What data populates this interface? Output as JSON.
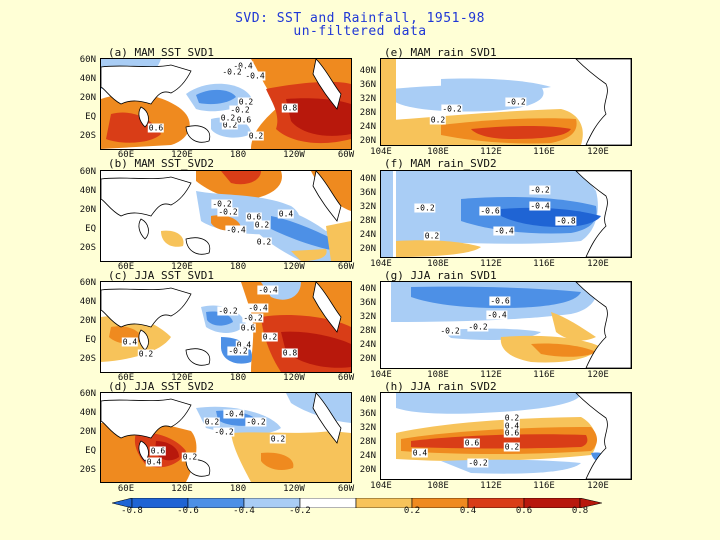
{
  "title": "SVD: SST and Rainfall, 1951-98",
  "subtitle": "un-filtered data",
  "colors": {
    "neg_dark": "#1f64d4",
    "neg_mid": "#4d90e6",
    "neg_light": "#a9cdf5",
    "white": "#ffffff",
    "pos_light": "#f7c35a",
    "pos_mid": "#ef8a1f",
    "pos_dark": "#d93d17",
    "pos_deep": "#b8180c",
    "land": "#ffffff",
    "title_blue": "#1f37d6",
    "background": "#ffffd6"
  },
  "sst_axes": {
    "y_ticks": [
      "60N",
      "40N",
      "20N",
      "EQ",
      "20S"
    ],
    "x_ticks": [
      "60E",
      "120E",
      "180",
      "120W",
      "60W"
    ]
  },
  "rain_axes": {
    "y_ticks": [
      "40N",
      "36N",
      "32N",
      "28N",
      "24N",
      "20N"
    ],
    "x_ticks": [
      "104E",
      "108E",
      "112E",
      "116E",
      "120E"
    ]
  },
  "panels": [
    {
      "id": "a",
      "title": "(a)  MAM  SST_SVD1",
      "labels": [
        "-0.4",
        "-0.4",
        "-0.2",
        "0.2",
        "-0.2",
        "0.6",
        "0.2",
        "0.8",
        "0.6",
        "0.2",
        "0.2"
      ]
    },
    {
      "id": "b",
      "title": "(b)  MAM  SST_SVD2",
      "labels": [
        "-0.2",
        "-0.2",
        "0.6",
        "0.4",
        "-0.4",
        "0.2",
        "0.2"
      ]
    },
    {
      "id": "c",
      "title": "(c)  JJA  SST_SVD1",
      "labels": [
        "-0.4",
        "-0.2",
        "-0.4",
        "-0.2",
        "0.4",
        "0.6",
        "0.4",
        "-0.2",
        "0.2",
        "0.8",
        "0.2"
      ]
    },
    {
      "id": "d",
      "title": "(d)  JJA  SST_SVD2",
      "labels": [
        "-0.4",
        "-0.2",
        "0.2",
        "-0.2",
        "0.2",
        "0.6",
        "0.4",
        "0.2"
      ]
    },
    {
      "id": "e",
      "title": "(e)  MAM  rain_SVD1",
      "labels": [
        "-0.2",
        "-0.2",
        "0.2"
      ]
    },
    {
      "id": "f",
      "title": "(f)  MAM  rain_SVD2",
      "labels": [
        "-0.2",
        "-0.4",
        "-0.2",
        "-0.6",
        "-0.8",
        "-0.4",
        "0.2"
      ]
    },
    {
      "id": "g",
      "title": "(g)  JJA  rain_SVD1",
      "labels": [
        "-0.6",
        "-0.4",
        "-0.2",
        "-0.2"
      ]
    },
    {
      "id": "h",
      "title": "(h)  JJA  rain_SVD2",
      "labels": [
        "0.2",
        "0.4",
        "0.6",
        "0.6",
        "0.2",
        "0.4",
        "-0.2"
      ]
    }
  ],
  "colorbar": {
    "ticks": [
      "-0.8",
      "-0.6",
      "-0.4",
      "-0.2",
      "0.2",
      "0.4",
      "0.6",
      "0.8"
    ]
  }
}
